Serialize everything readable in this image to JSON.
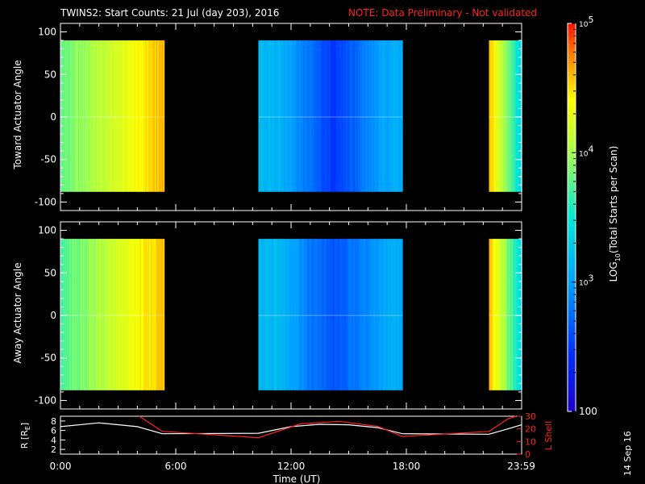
{
  "title": {
    "main": "TWINS2: Start Counts: 21 Jul (day 203), 2016",
    "note": "NOTE: Data Preliminary - Not validated"
  },
  "stamp": "14 Sep 16",
  "colorbar": {
    "label_prefix": "LOG",
    "label_sub": "10",
    "label_suffix": "(Total Starts per Scan)",
    "ticks": [
      {
        "value": 100,
        "text": "100"
      },
      {
        "value": 1000,
        "base": "10",
        "exp": "3"
      },
      {
        "value": 10000,
        "base": "10",
        "exp": "4"
      },
      {
        "value": 100000,
        "base": "10",
        "exp": "5"
      }
    ],
    "range": [
      100,
      100000
    ],
    "scale": "log"
  },
  "chart_data": [
    {
      "type": "heatmap",
      "ylabel": "Toward Actuator Angle",
      "xlabel": "",
      "xlim": [
        0,
        24
      ],
      "ylim": [
        -110,
        110
      ],
      "angle_range": [
        -88,
        90
      ],
      "yticks": [
        100,
        50,
        0,
        -50,
        -100
      ],
      "data_intervals": [
        {
          "start": 0.0,
          "end": 5.4,
          "counts_start": 6000,
          "counts_end": 40000
        },
        {
          "start": 10.3,
          "end": 17.8,
          "counts_start": 1500,
          "counts_end": 1200,
          "counts_min": 300,
          "counts_min_at": 14.2
        },
        {
          "start": 22.3,
          "end": 24.0,
          "counts_start": 40000,
          "counts_end": 2000
        }
      ]
    },
    {
      "type": "heatmap",
      "ylabel": "Away Actuator Angle",
      "xlabel": "",
      "xlim": [
        0,
        24
      ],
      "ylim": [
        -110,
        110
      ],
      "angle_range": [
        -88,
        90
      ],
      "yticks": [
        100,
        50,
        0,
        -50,
        -100
      ],
      "data_intervals": [
        {
          "start": 0.0,
          "end": 5.4,
          "counts_start": 5000,
          "counts_end": 40000
        },
        {
          "start": 10.3,
          "end": 17.8,
          "counts_start": 1500,
          "counts_end": 1200,
          "counts_min": 400,
          "counts_min_at": 14.2
        },
        {
          "start": 22.3,
          "end": 24.0,
          "counts_start": 40000,
          "counts_end": 2000
        }
      ]
    },
    {
      "type": "line",
      "xlabel": "Time (UT)",
      "xticks": [
        "0:00",
        "6:00",
        "12:00",
        "18:00",
        "23:59"
      ],
      "xtick_values": [
        0,
        6,
        12,
        18,
        23.983
      ],
      "xlim": [
        0,
        24
      ],
      "ylabel_left": {
        "text": "R [R",
        "sub": "E",
        "close": "]"
      },
      "ylim_left": [
        1,
        9
      ],
      "yticks_left": [
        2,
        4,
        6,
        8
      ],
      "ylabel_right": "L Shell",
      "ylim_right": [
        0,
        30
      ],
      "yticks_right": [
        0,
        10,
        20,
        30
      ],
      "series": [
        {
          "color": "#ffffff",
          "axis": "left",
          "x": [
            0,
            2,
            4,
            5.3,
            10.3,
            12,
            13.5,
            15,
            16.5,
            17.8,
            22.3,
            23,
            24
          ],
          "y": [
            6.8,
            7.6,
            6.8,
            5.3,
            5.4,
            6.8,
            7.3,
            7.2,
            6.6,
            5.3,
            5.2,
            6.0,
            7.2
          ]
        },
        {
          "color": "#ff2020",
          "axis": "right",
          "x": [
            4.1,
            5.3,
            10.3,
            12.5,
            14.5,
            16.5,
            17.8,
            22.3,
            23.3,
            23.7
          ],
          "y": [
            30,
            18,
            13,
            24,
            26,
            22,
            14,
            18,
            28,
            30
          ]
        }
      ]
    }
  ]
}
